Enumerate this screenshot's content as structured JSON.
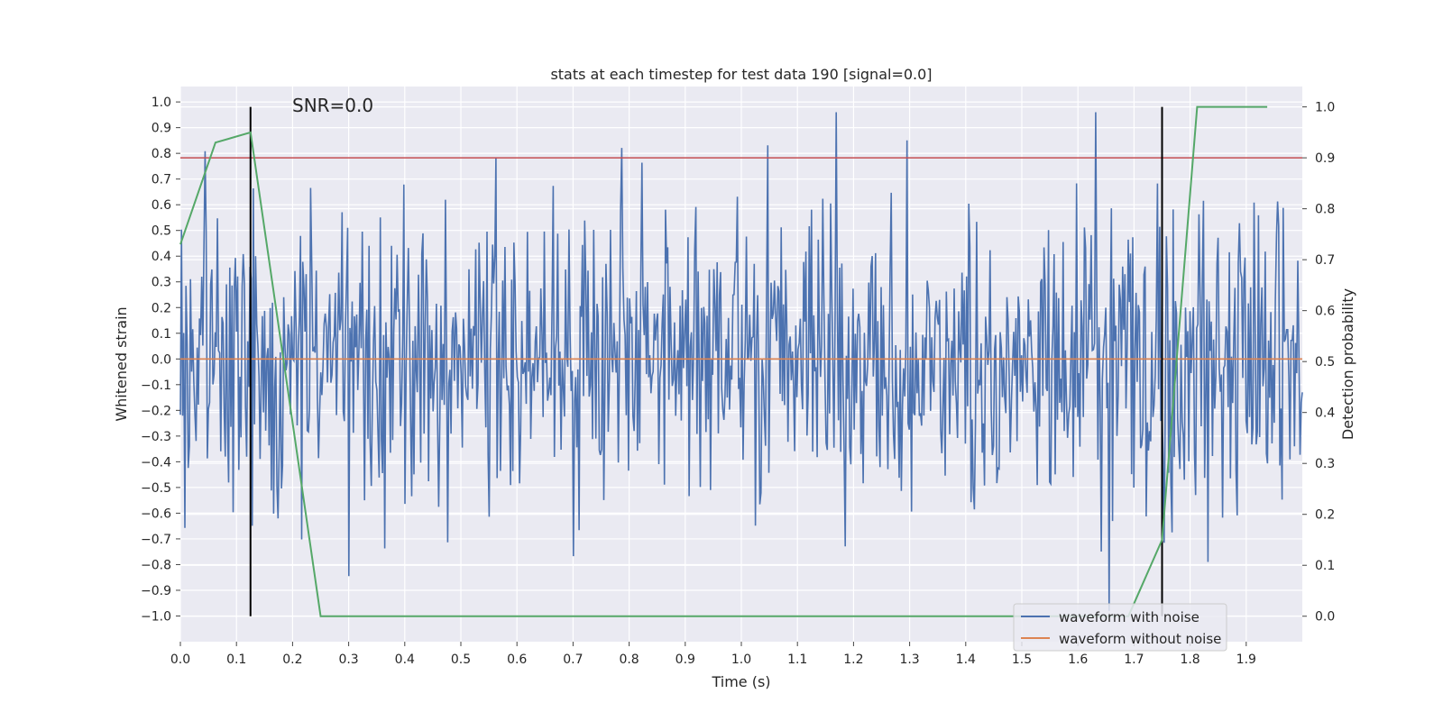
{
  "chart_data": {
    "type": "line",
    "title": "stats at each timestep for test data 190 [signal=0.0]",
    "xlabel": "Time (s)",
    "ylabel_left": "Whitened strain",
    "ylabel_right": "Detection probability",
    "annotation": "SNR=0.0",
    "xlim": [
      0.0,
      2.0
    ],
    "ylim_left": [
      -1.1,
      1.06
    ],
    "ylim_right": [
      -0.05,
      1.04
    ],
    "x_ticks": [
      0.0,
      0.1,
      0.2,
      0.3,
      0.4,
      0.5,
      0.6,
      0.7,
      0.8,
      0.9,
      1.0,
      1.1,
      1.2,
      1.3,
      1.4,
      1.5,
      1.6,
      1.7,
      1.8,
      1.9
    ],
    "x_tick_labels": [
      "0.0",
      "0.1",
      "0.2",
      "0.3",
      "0.4",
      "0.5",
      "0.6",
      "0.7",
      "0.8",
      "0.9",
      "1.0",
      "1.1",
      "1.2",
      "1.3",
      "1.4",
      "1.5",
      "1.6",
      "1.7",
      "1.8",
      "1.9"
    ],
    "y_left_ticks": [
      1.0,
      0.9,
      0.8,
      0.7,
      0.6,
      0.5,
      0.4,
      0.3,
      0.2,
      0.1,
      0.0,
      -0.1,
      -0.2,
      -0.3,
      -0.4,
      -0.5,
      -0.6,
      -0.7,
      -0.8,
      -0.9,
      -1.0
    ],
    "y_left_tick_labels": [
      "1.0",
      "0.9",
      "0.8",
      "0.7",
      "0.6",
      "0.5",
      "0.4",
      "0.3",
      "0.2",
      "0.1",
      "0.0",
      "−0.1",
      "−0.2",
      "−0.3",
      "−0.4",
      "−0.5",
      "−0.6",
      "−0.7",
      "−0.8",
      "−0.9",
      "−1.0"
    ],
    "y_right_ticks": [
      1.0,
      0.9,
      0.8,
      0.7,
      0.6,
      0.5,
      0.4,
      0.3,
      0.2,
      0.1,
      0.0
    ],
    "y_right_tick_labels": [
      "1.0",
      "0.9",
      "0.8",
      "0.7",
      "0.6",
      "0.5",
      "0.4",
      "0.3",
      "0.2",
      "0.1",
      "0.0"
    ],
    "series": [
      {
        "name": "waveform with noise",
        "color": "#4c72b0",
        "axis": "left",
        "kind": "noise",
        "n_points": 1000,
        "seed": 190,
        "amplitude_range": [
          -0.98,
          0.96
        ]
      },
      {
        "name": "waveform without noise",
        "color": "#dd8452",
        "axis": "left",
        "kind": "constant",
        "value": 0.0
      }
    ],
    "detection_probability": {
      "color": "#55a868",
      "axis": "right",
      "x": [
        0.0,
        0.0625,
        0.125,
        0.25,
        0.3,
        1.69,
        1.75,
        1.8125,
        1.875,
        1.9375
      ],
      "y": [
        0.73,
        0.93,
        0.95,
        0.0,
        0.0,
        0.0,
        0.15,
        1.0,
        1.0,
        1.0
      ]
    },
    "threshold": {
      "value": 0.9,
      "axis": "right",
      "color": "#c44e52"
    },
    "vlines": [
      {
        "x": 0.125,
        "ymin": 0.0,
        "ymax": 1.0,
        "color": "#000000"
      },
      {
        "x": 1.75,
        "ymin": 0.0,
        "ymax": 1.0,
        "color": "#000000"
      }
    ],
    "legend": {
      "position": "lower-right",
      "entries": [
        {
          "label": "waveform with noise",
          "color": "#4c72b0"
        },
        {
          "label": "waveform without noise",
          "color": "#dd8452"
        }
      ]
    },
    "grid": true
  }
}
